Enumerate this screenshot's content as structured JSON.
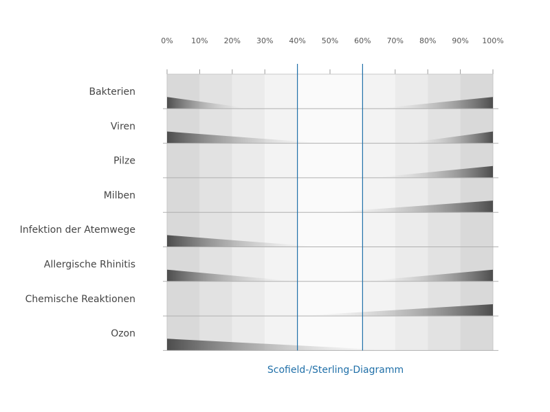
{
  "chart_data": {
    "type": "other",
    "title": "",
    "caption": "Scofield-/Sterling-Diagramm",
    "x_ticks": [
      "0%",
      "10%",
      "20%",
      "30%",
      "40%",
      "50%",
      "60%",
      "70%",
      "80%",
      "90%",
      "100%"
    ],
    "xlim": [
      0,
      100
    ],
    "reference_lines": [
      40,
      60
    ],
    "rows": [
      {
        "label": "Bakterien",
        "left": {
          "reach": 26,
          "height": 0.34
        },
        "right": {
          "reach": 64,
          "height": 0.34
        }
      },
      {
        "label": "Viren",
        "left": {
          "reach": 48,
          "height": 0.34
        },
        "right": {
          "reach": 73,
          "height": 0.34
        }
      },
      {
        "label": "Pilze",
        "left": null,
        "right": {
          "reach": 63,
          "height": 0.34
        }
      },
      {
        "label": "Milben",
        "left": null,
        "right": {
          "reach": 50,
          "height": 0.34
        }
      },
      {
        "label": "Infektion der Atemwege",
        "left": {
          "reach": 47,
          "height": 0.34
        },
        "right": null
      },
      {
        "label": "Allergische Rhinitis",
        "left": {
          "reach": 40,
          "height": 0.34
        },
        "right": {
          "reach": 60,
          "height": 0.34
        }
      },
      {
        "label": "Chemische Reaktionen",
        "left": null,
        "right": {
          "reach": 40,
          "height": 0.34
        }
      },
      {
        "label": "Ozon",
        "left": {
          "reach": 70,
          "height": 0.34
        },
        "right": null
      }
    ],
    "grid": true,
    "colors": {
      "reference_line": "#1f6fa8",
      "caption": "#1f6fa8",
      "wedge_dark": "#4d4d4d",
      "band_edge": "#d6d6d6",
      "band_center": "#fafafa",
      "row_divider": "#b0b0b0"
    }
  }
}
